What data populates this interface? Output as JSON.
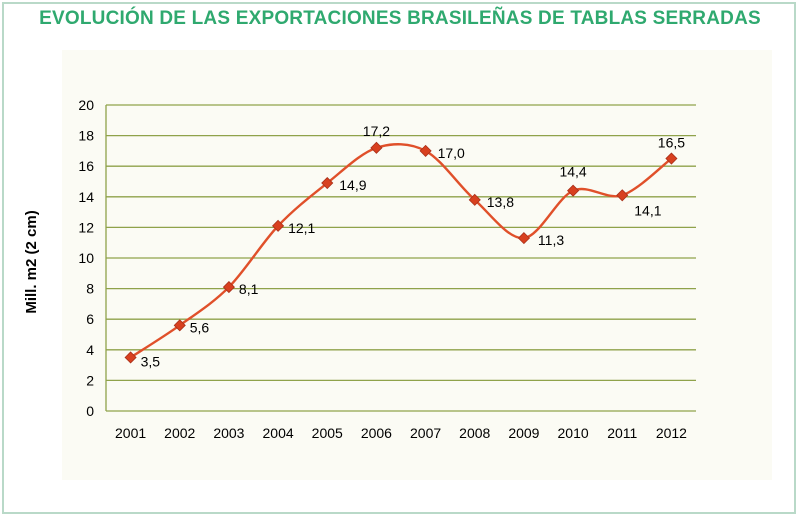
{
  "title": "EVOLUCIÓN DE LAS EXPORTACIONES BRASILEÑAS DE TABLAS SERRADAS",
  "colors": {
    "title": "#2fa96f",
    "grid": "#8fa24a",
    "line": "#e0502a",
    "marker": "#d8401f",
    "frame": "#b9d9c8"
  },
  "chart_data": {
    "type": "line",
    "title": "EVOLUCIÓN DE LAS EXPORTACIONES BRASILEÑAS DE TABLAS SERRADAS",
    "xlabel": "",
    "ylabel": "Mill. m2 (2 cm)",
    "ylim": [
      0,
      20
    ],
    "yticks": [
      0,
      2,
      4,
      6,
      8,
      10,
      12,
      14,
      16,
      18,
      20
    ],
    "grid": true,
    "legend": "none",
    "categories": [
      "2001",
      "2002",
      "2003",
      "2004",
      "2005",
      "2006",
      "2007",
      "2008",
      "2009",
      "2010",
      "2011",
      "2012"
    ],
    "series": [
      {
        "values": [
          3.5,
          5.6,
          8.1,
          12.1,
          14.9,
          17.2,
          17.0,
          13.8,
          11.3,
          14.4,
          14.1,
          16.5
        ],
        "labels": [
          "3,5",
          "5,6",
          "8,1",
          "12,1",
          "14,9",
          "17,2",
          "17,0",
          "13,8",
          "11,3",
          "14,4",
          "14,1",
          "16,5"
        ]
      }
    ]
  }
}
